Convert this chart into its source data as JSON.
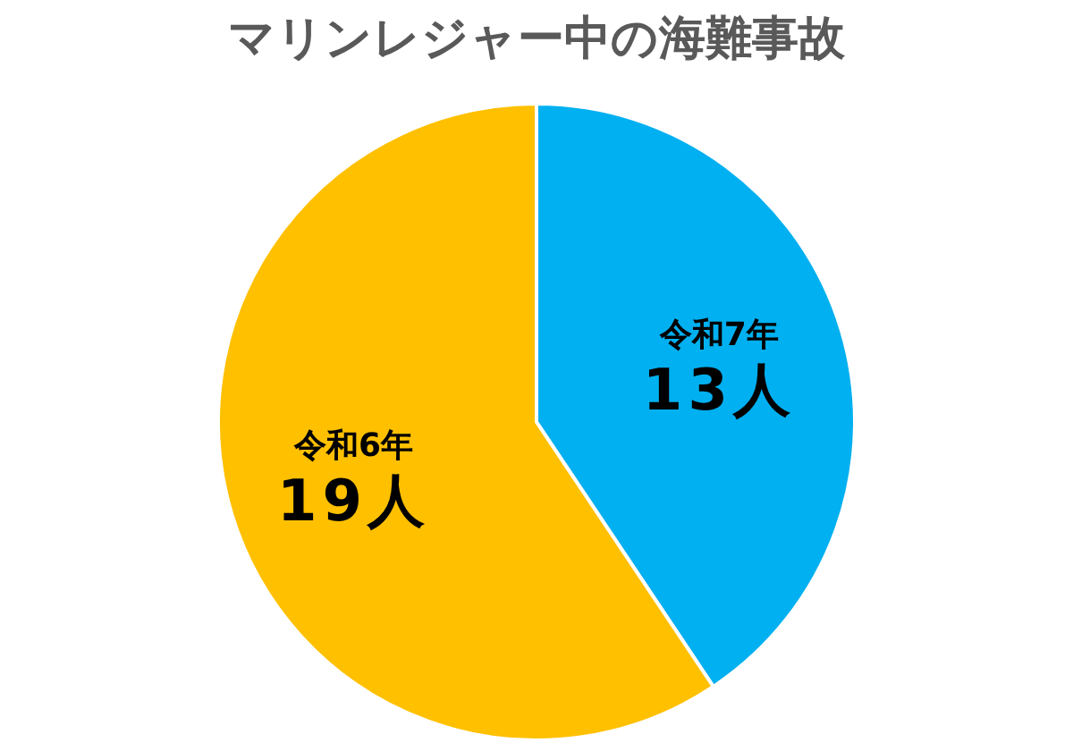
{
  "chart_data": {
    "type": "pie",
    "title": "マリンレジャー中の海難事故",
    "categories": [
      "令和7年",
      "令和6年"
    ],
    "values": [
      13,
      19
    ],
    "value_labels": [
      "13人",
      "19人"
    ],
    "colors": [
      "#00b0f0",
      "#ffc000"
    ]
  }
}
